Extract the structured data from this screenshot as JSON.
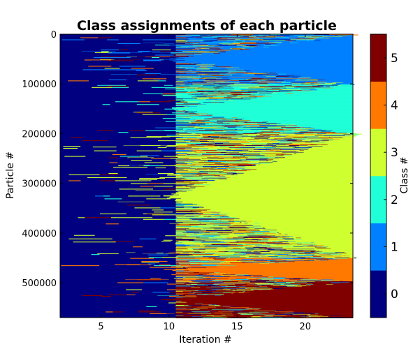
{
  "chart_data": {
    "type": "heatmap",
    "title": "Class assignments of each particle",
    "xlabel": "Iteration #",
    "ylabel": "Particle #",
    "x_range": [
      2,
      23.5
    ],
    "y_range": [
      570000,
      0
    ],
    "x_ticks": [
      5,
      10,
      15,
      20
    ],
    "y_ticks": [
      0,
      100000,
      200000,
      300000,
      400000,
      500000
    ],
    "y_tick_labels": [
      "0",
      "100000",
      "200000",
      "300000",
      "400000",
      "500000"
    ],
    "colorbar": {
      "label": "Class #",
      "range": [
        -0.5,
        5.5
      ],
      "ticks": [
        0,
        1,
        2,
        3,
        4,
        5
      ],
      "tick_labels": [
        "0",
        "1",
        "2",
        "3",
        "4",
        "5"
      ]
    },
    "classes": [
      {
        "id": 0,
        "color": "#000080"
      },
      {
        "id": 1,
        "color": "#0080ff"
      },
      {
        "id": 2,
        "color": "#20ffd7"
      },
      {
        "id": 3,
        "color": "#cfff30"
      },
      {
        "id": 4,
        "color": "#ff7800"
      },
      {
        "id": 5,
        "color": "#800000"
      }
    ],
    "converged_regions": [
      {
        "class": 1,
        "particle_start": 0,
        "particle_end": 100000
      },
      {
        "class": 2,
        "particle_start": 100000,
        "particle_end": 200000
      },
      {
        "class": 3,
        "particle_start": 200000,
        "particle_end": 450000
      },
      {
        "class": 4,
        "particle_start": 450000,
        "particle_end": 497000
      },
      {
        "class": 5,
        "particle_start": 497000,
        "particle_end": 570000
      }
    ],
    "grid": false
  }
}
